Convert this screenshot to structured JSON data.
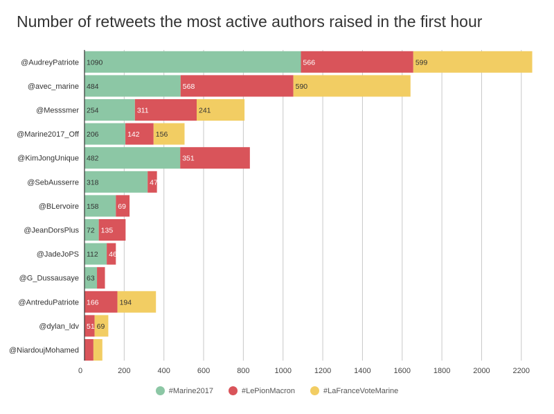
{
  "chart_data": {
    "type": "bar",
    "orientation": "horizontal",
    "stacked": true,
    "title": "Number of retweets the most active authors raised in the first hour",
    "categories": [
      "@AudreyPatriote",
      "@avec_marine",
      "@Messsmer",
      "@Marine2017_Off",
      "@KimJongUnique",
      "@SebAusserre",
      "@BLervoire",
      "@JeanDorsPlus",
      "@JadeJoPS",
      "@G_Dussausaye",
      "@AntreduPatriote",
      "@dylan_ldv",
      "@NiardoujMohamed"
    ],
    "series": [
      {
        "name": "#Marine2017",
        "color": "#8cc7a5",
        "values": [
          1090,
          484,
          254,
          206,
          482,
          318,
          158,
          72,
          112,
          63,
          0,
          0,
          0
        ],
        "labels": [
          "1090",
          "484",
          "254",
          "206",
          "482",
          "318",
          "158",
          "72",
          "112",
          "63",
          "",
          "",
          ""
        ]
      },
      {
        "name": "#LePionMacron",
        "color": "#d9545a",
        "values": [
          566,
          568,
          311,
          142,
          351,
          47,
          69,
          135,
          46,
          40,
          166,
          51,
          45
        ],
        "labels": [
          "566",
          "568",
          "311",
          "142",
          "351",
          "47",
          "69",
          "135",
          "46",
          "",
          "166",
          "51",
          ""
        ]
      },
      {
        "name": "#LaFranceVoteMarine",
        "color": "#f2cd63",
        "values": [
          599,
          590,
          241,
          156,
          0,
          0,
          0,
          0,
          0,
          0,
          194,
          69,
          45
        ],
        "labels": [
          "599",
          "590",
          "241",
          "156",
          "",
          "",
          "",
          "",
          "",
          "",
          "194",
          "69",
          ""
        ]
      }
    ],
    "xlim": [
      0,
      2260
    ],
    "xticks": [
      0,
      200,
      400,
      600,
      800,
      1000,
      1200,
      1400,
      1600,
      1800,
      2000,
      2200
    ],
    "grid": true,
    "legend_position": "bottom"
  }
}
